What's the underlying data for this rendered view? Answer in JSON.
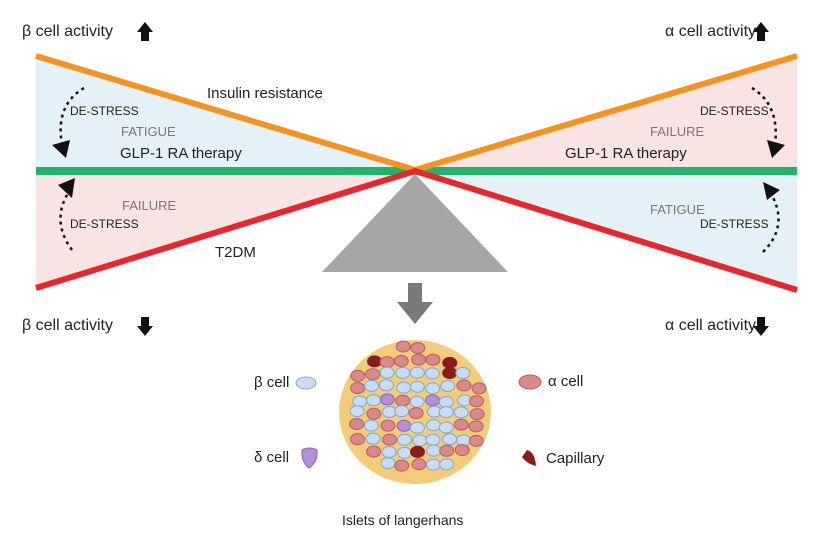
{
  "top_left_label": "β cell activity",
  "top_right_label": "α cell activity",
  "bottom_left_label": "β cell activity",
  "bottom_right_label": "α cell activity",
  "left": {
    "insulin_resistance": "Insulin resistance",
    "destress_top": "DE-STRESS",
    "fatigue": "FATIGUE",
    "therapy": "GLP-1 RA therapy",
    "failure": "FAILURE",
    "destress_bottom": "DE-STRESS",
    "t2dm": "T2DM"
  },
  "right": {
    "destress_top": "DE-STRESS",
    "failure": "FAILURE",
    "therapy": "GLP-1 RA therapy",
    "fatigue": "FATIGUE",
    "destress_bottom": "DE-STRESS"
  },
  "legend": {
    "beta": "β cell",
    "delta": "δ cell",
    "alpha": "α cell",
    "capillary": "Capillary"
  },
  "islet_caption": "Islets of langerhans",
  "colors": {
    "insulin_resistance": "#f39322",
    "t2dm": "#e8262b",
    "therapy": "#22b26b",
    "fatigue_fill": "#e4f1f9",
    "failure_fill": "#f7e4e3",
    "fulcrum": "#a6a6a6",
    "beta": "#c9dcf0",
    "alpha": "#d9898a",
    "delta": "#b48fd6",
    "capillary": "#8b1a1a"
  }
}
